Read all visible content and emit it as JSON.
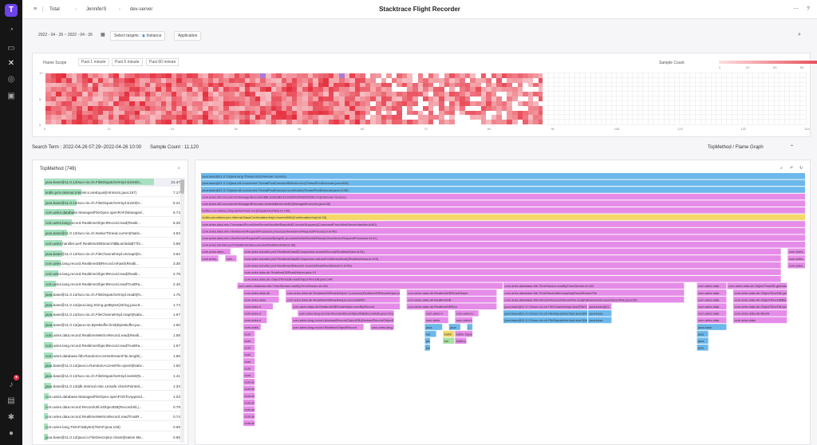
{
  "header": {
    "breadcrumbs": [
      "Total",
      "JenniferS",
      "dev-server"
    ],
    "title": "Stacktrace Flight Recorder",
    "help_icon": "help-icon"
  },
  "filters": {
    "date_range": "2022 - 04 - 26 ~ 2022 - 04 - 26",
    "select_targets_label": "Select targets :",
    "instance_label": "Instance",
    "application_label": "Application"
  },
  "flame_scope": {
    "title": "Flame Scope",
    "buttons": [
      "Past 1 minute",
      "Past 5 minute",
      "Past 60 minute"
    ],
    "legend_title": "Sample Count",
    "legend_ticks": [
      "0",
      "20",
      "60",
      "80",
      "121"
    ],
    "y_ticks": [
      "10",
      "5",
      "0"
    ],
    "x_ticks": [
      "0",
      "12",
      "24",
      "36",
      "48",
      "60",
      "72",
      "84",
      "96",
      "108",
      "120",
      "132",
      "144"
    ]
  },
  "summary": {
    "search_term": "Search Term : 2022-04-26 07:29~2022-04-26 10:00",
    "sample_count": "Sample Count : 11,120",
    "view_mode": "TopMethod / Flame Graph"
  },
  "top_method": {
    "title": "TopMethod (749)",
    "rows": [
      {
        "name": "java.base@11.0.13/sun.nio.ch.FileDispatcherImpl.size0(N...",
        "pct": "21.47%",
        "frac": 0.92
      },
      {
        "name": "kotlin.jvm.internal.Intrinsics.areEqual(Intrinsics.java:167)",
        "pct": "7.17%",
        "frac": 0.31
      },
      {
        "name": "java.base@11.0.13/sun.nio.ch.FileDispatcherImpl.size0(N...",
        "pct": "6.21%",
        "frac": 0.27
      },
      {
        "name": "com.aries.database.ManagedFileOpen.openRAF(Managed...",
        "pct": "5.74%",
        "frac": 0.25
      },
      {
        "name": "com.aries.lang.record.RealtimeObjectRecord.read(Realti...",
        "pct": "5.25%",
        "frac": 0.23
      },
      {
        "name": "java.base@11.0.13/sun.nio.ch.NativeThread.current(Nativ...",
        "pct": "4.52%",
        "frac": 0.19
      },
      {
        "name": "com.aries.handler.perf.RealtimeDBSearch$$Lambda$77b/...",
        "pct": "3.58%",
        "frac": 0.15
      },
      {
        "name": "java.base@11.0.13/sun.nio.ch.FileChannelImpl.unmap0(N...",
        "pct": "3.52%",
        "frac": 0.15
      },
      {
        "name": "com.aries.lang.record.RealtimeDBRecord.rehash(Realti...",
        "pct": "3.35%",
        "frac": 0.14
      },
      {
        "name": "com.aries.lang.record.RealtimeObjectRecord.read(Realti...",
        "pct": "2.79%",
        "frac": 0.12
      },
      {
        "name": "com.aries.lang.record.RealtimeObjectRecord.readTrustRa...",
        "pct": "2.45%",
        "frac": 0.1
      },
      {
        "name": "java.base@11.0.13/sun.nio.ch.FileDispatcherImpl.read0(N...",
        "pct": "1.75%",
        "frac": 0.07
      },
      {
        "name": "java.base@11.0.13/java.lang.String.getBytes(String.java:9...",
        "pct": "1.74%",
        "frac": 0.07
      },
      {
        "name": "java.base@11.0.13/sun.nio.ch.FileChannelImpl.map0(Nativ...",
        "pct": "1.67%",
        "frac": 0.07
      },
      {
        "name": "java.base@11.0.13/java.nio.ByteBuffer.limit(ByteBuffer.jav...",
        "pct": "1.60%",
        "frac": 0.07
      },
      {
        "name": "com.aries.data.record.RealtimeMetricsRecord.read(Realti...",
        "pct": "1.58%",
        "frac": 0.07
      },
      {
        "name": "com.aries.lang.record.RealtimeObjectRecord.readTrustRa...",
        "pct": "1.57%",
        "frac": 0.07
      },
      {
        "name": "com.aries.database.fdb.RandomAccessStreamFile.length(...",
        "pct": "1.56%",
        "frac": 0.07
      },
      {
        "name": "java.base@11.0.13/java.io.RandomAccessFile.open0(Nativ...",
        "pct": "1.50%",
        "frac": 0.06
      },
      {
        "name": "java.base@11.0.13/sun.nio.ch.FileDispatcherImpl.seek0(N...",
        "pct": "1.41%",
        "frac": 0.06
      },
      {
        "name": "java.base@11.0.13/jdk.internal.misc.Unsafe.checkPointer(...",
        "pct": "1.34%",
        "frac": 0.06
      },
      {
        "name": "com.aries.database.ManagedFileOpen.openFOSToAppend...",
        "pct": "1.03%",
        "frac": 0.04
      },
      {
        "name": "com.aries.data.record.RecordUtil.isObjectDB(RecordUtil.j...",
        "pct": "0.79%",
        "frac": 0.03
      },
      {
        "name": "com.aries.data.record.RealtimeMetricsRecord.readTrustR...",
        "pct": "0.74%",
        "frac": 0.03
      },
      {
        "name": "com.aries.lang.TMAP.toBytes(TMAP.java:148)",
        "pct": "0.69%",
        "frac": 0.03
      },
      {
        "name": "java.base@11.0.13/java.io.FileDescriptor.close0(Native Me...",
        "pct": "0.65%",
        "frac": 0.03
      }
    ]
  },
  "flame_graph": {
    "frames": [
      {
        "d": 0,
        "s": 0,
        "w": 1,
        "c": "#6cb8ec",
        "t": "java.base@11.0.13/java.lang.Thread.run(Unknown Source)"
      },
      {
        "d": 1,
        "s": 0,
        "w": 1,
        "c": "#6cb8ec",
        "t": "java.base@11.0.13/java.util.concurrent.ThreadPoolExecutor$Worker.run(ThreadPoolExecutor.java:628)"
      },
      {
        "d": 2,
        "s": 0,
        "w": 1,
        "c": "#6cb8ec",
        "t": "java.base@11.0.13/java.util.concurrent.ThreadPoolExecutor.runWorker(ThreadPoolExecutor.java:1128)"
      },
      {
        "d": 3,
        "s": 0,
        "w": 1,
        "c": "#e58ce8",
        "t": "com.aries.util.concurrent.ManagedExecutor$$Lambda$131/0x000000080025f6.run(Unknown Source)"
      },
      {
        "d": 4,
        "s": 0,
        "w": 1,
        "c": "#e58ce8",
        "t": "com.aries.util.concurrent.ManagedExecutor.lambda$execute$1(ManagedExecutor.java:85)"
      },
      {
        "d": 5,
        "s": 0,
        "w": 1,
        "c": "#e58ce8",
        "t": "kotlinx.coroutines.DispatchedTask.run(DispatchedTask.kt:106)"
      },
      {
        "d": 6,
        "s": 0,
        "w": 1,
        "c": "#f6d86a",
        "t": "kotlin.coroutines.jvm.internal.BaseContinuationImpl.resumeWith(ContinuationImpl.kt:33)"
      },
      {
        "d": 7,
        "s": 0,
        "w": 1,
        "c": "#e58ce8",
        "t": "com.aries.data.mix.CommandFromViewServerHandler$handle$1.invokeSuspend(CommandFromViewServerHandler.kt:80)"
      },
      {
        "d": 8,
        "s": 0,
        "w": 1,
        "c": "#e58ce8",
        "t": "com.aries.data.mix.ViewServerRequestProcessor.process(ViewServerRequestProcessor.kt:46)"
      },
      {
        "d": 9,
        "s": 0,
        "w": 1,
        "c": "#e58ce8",
        "t": "com.aries.data.mix.ViewServerRequestProcessor$wrap$1.processNoNetRubbleResult(ViewServerRequestProcessor.kt:41)"
      },
      {
        "d": 10,
        "s": 0,
        "w": 1,
        "c": "#e58ce8",
        "t": "com.aries.handler.perf.RealtimeData.execute(RealtimeData.kt:38)"
      },
      {
        "d": 11,
        "s": 0,
        "w": 0.05,
        "c": "#e58ce8",
        "t": "com.aries.data..."
      },
      {
        "d": 11,
        "s": 0.07,
        "w": 0.89,
        "c": "#e58ce8",
        "t": "com.aries.handler.perf.RealtimeData$Companion.searchRecord(RealtimeData.kt:34)"
      },
      {
        "d": 11,
        "s": 0.97,
        "w": 0.03,
        "c": "#e58ce8",
        "t": "com.aries..."
      },
      {
        "d": 12,
        "s": 0,
        "w": 0.03,
        "c": "#e58ce8",
        "t": "com.aries..."
      },
      {
        "d": 12,
        "s": 0.04,
        "w": 0.02,
        "c": "#e58ce8",
        "t": "com..."
      },
      {
        "d": 12,
        "s": 0.07,
        "w": 0.89,
        "c": "#e58ce8",
        "t": "com.aries.handler.perf.RealtimeData$Companion.valuesForMetricsStore(RealtimeData.kt:109)"
      },
      {
        "d": 12,
        "s": 0.97,
        "w": 0.03,
        "c": "#e58ce8",
        "t": "com.aries..."
      },
      {
        "d": 13,
        "s": 0.07,
        "w": 0.89,
        "c": "#e58ce8",
        "t": "com.aries.handler.perf.RealtimeDBSearch.search(RealtimeDBSearch.kt:95)"
      },
      {
        "d": 13,
        "s": 0.97,
        "w": 0.03,
        "c": "#e58ce8",
        "t": "com.aries..."
      },
      {
        "d": 14,
        "s": 0.07,
        "w": 0.89,
        "c": "#e58ce8",
        "t": "com.aries.data.db.RealtimeDBReadHelper.java:19"
      },
      {
        "d": 15,
        "s": 0.07,
        "w": 0.89,
        "c": "#e58ce8",
        "t": "com.aries.data.db.ObjectTimeDB.readObjectTimeDB.java:148"
      },
      {
        "d": 16,
        "s": 0.06,
        "w": 0.44,
        "c": "#e58ce8",
        "t": "com.aries.database.fdb.TimeStream.readByTimeStream.kt:156"
      },
      {
        "d": 16,
        "s": 0.5,
        "w": 0.3,
        "c": "#e58ce8",
        "t": "com.aries.database.fdb.TimeStream.readByTimeStream.kt:152"
      },
      {
        "d": 16,
        "s": 0.82,
        "w": 0.05,
        "c": "#e58ce8",
        "t": "com.aries.data"
      },
      {
        "d": 16,
        "s": 0.87,
        "w": 0.1,
        "c": "#e58ce8",
        "t": "com.aries.data.db.ObjectTimeDB.getDatabase"
      },
      {
        "d": 17,
        "s": 0.07,
        "w": 0.06,
        "c": "#e58ce8",
        "t": "com.aries.data.db"
      },
      {
        "d": 17,
        "s": 0.14,
        "w": 0.19,
        "c": "#e58ce8",
        "t": "com.aries.data.db.RealtimeDBReadHelper.1.process(RealtimeDBReadHelper.java:122)"
      },
      {
        "d": 17,
        "s": 0.34,
        "w": 0.15,
        "c": "#e58ce8",
        "t": "com.aries.data.db.RealtimeDBReadHelper"
      },
      {
        "d": 17,
        "s": 0.5,
        "w": 0.3,
        "c": "#e58ce8",
        "t": "com.aries.database.fdb.TimeStreamMemoryMapReadStreamFile"
      },
      {
        "d": 17,
        "s": 0.82,
        "w": 0.05,
        "c": "#e58ce8",
        "t": "com.aries.data"
      },
      {
        "d": 17,
        "s": 0.88,
        "w": 0.09,
        "c": "#e58ce8",
        "t": "com.aries.data.db.ObjectTimeDB.getDatabase"
      },
      {
        "d": 18,
        "s": 0.07,
        "w": 0.06,
        "c": "#e58ce8",
        "t": "com.aries.data"
      },
      {
        "d": 18,
        "s": 0.14,
        "w": 0.19,
        "c": "#e58ce8",
        "t": "com.aries.data.db.RealtimeDBReadHelper.access$000"
      },
      {
        "d": 18,
        "s": 0.34,
        "w": 0.15,
        "c": "#e58ce8",
        "t": "com.aries.data.db.RealtimeDB"
      },
      {
        "d": 18,
        "s": 0.5,
        "w": 0.3,
        "c": "#e58ce8",
        "t": "com.aries.database.fdb.RandomAccessStreamFile.length(RandomAccessStreamFile.java:29)"
      },
      {
        "d": 18,
        "s": 0.82,
        "w": 0.05,
        "c": "#e58ce8",
        "t": "com.aries.data"
      },
      {
        "d": 18,
        "s": 0.88,
        "w": 0.09,
        "c": "#e58ce8",
        "t": "com.aries.data.db.ObjectTimeDB$$Lambda"
      },
      {
        "d": 19,
        "s": 0.07,
        "w": 0.05,
        "c": "#e58ce8",
        "t": "com.aries.d"
      },
      {
        "d": 19,
        "s": 0.15,
        "w": 0.18,
        "c": "#e58ce8",
        "t": "com.aries.data.db.RealtimeDBReadHelper.readByRecord"
      },
      {
        "d": 19,
        "s": 0.34,
        "w": 0.15,
        "c": "#e58ce8",
        "t": "com.aries.data.db.RealtimeDBRea"
      },
      {
        "d": 19,
        "s": 0.5,
        "w": 0.14,
        "c": "#e58ce8",
        "t": "java.base@11.0.13/sun.nio.ch.FileChannelImpl.size(FileChannelImpl.java:388)"
      },
      {
        "d": 19,
        "s": 0.64,
        "w": 0.04,
        "c": "#e58ce8",
        "t": "java.base@11"
      },
      {
        "d": 19,
        "s": 0.82,
        "w": 0.05,
        "c": "#e58ce8",
        "t": "com.aries.data"
      },
      {
        "d": 19,
        "s": 0.88,
        "w": 0.09,
        "c": "#e58ce8",
        "t": "com.aries.data.db.ObjectTimeDB.lambda"
      },
      {
        "d": 20,
        "s": 0.07,
        "w": 0.04,
        "c": "#e58ce8",
        "t": "com.aries.d"
      },
      {
        "d": 20,
        "s": 0.16,
        "w": 0.16,
        "c": "#e58ce8",
        "t": "com.aries.lang.record.RecordUtils.isObjectDB(RecordUtil.java:101)"
      },
      {
        "d": 20,
        "s": 0.37,
        "w": 0.04,
        "c": "#e58ce8",
        "t": "com.aries.d"
      },
      {
        "d": 20,
        "s": 0.42,
        "w": 0.04,
        "c": "#e58ce8",
        "t": "com.aries.lo"
      },
      {
        "d": 20,
        "s": 0.5,
        "w": 0.14,
        "c": "#6cb8ec",
        "t": "java.base@11.0.13/sun.nio.ch.FileDispatcherImpl.size0(FileDispatcherImpl.java)"
      },
      {
        "d": 20,
        "s": 0.64,
        "w": 0.04,
        "c": "#6cb8ec",
        "t": "java.base"
      },
      {
        "d": 20,
        "s": 0.82,
        "w": 0.05,
        "c": "#e58ce8",
        "t": "com.aries.data"
      },
      {
        "d": 20,
        "s": 0.88,
        "w": 0.09,
        "c": "#e58ce8",
        "t": "com.aries.data.db.fileUtil"
      },
      {
        "d": 21,
        "s": 0.07,
        "w": 0.04,
        "c": "#e58ce8",
        "t": "com.aries.d"
      },
      {
        "d": 21,
        "s": 0.15,
        "w": 0.17,
        "c": "#e58ce8",
        "t": "com.aries.lang.record.AbstractRecordObjectDB(AbstractRecordObjectDB.java:31)"
      },
      {
        "d": 21,
        "s": 0.37,
        "w": 0.04,
        "c": "#e58ce8",
        "t": "com.aries"
      },
      {
        "d": 21,
        "s": 0.42,
        "w": 0.03,
        "c": "#e58ce8",
        "t": "com.aries.la"
      },
      {
        "d": 21,
        "s": 0.5,
        "w": 0.14,
        "c": "#6cb8ec",
        "t": "java.base@11.0.13/sun.nio.ch.FileDispatcherImpl.size0(Native Method)"
      },
      {
        "d": 21,
        "s": 0.64,
        "w": 0.04,
        "c": "#6cb8ec",
        "t": "java.base"
      },
      {
        "d": 21,
        "s": 0.82,
        "w": 0.05,
        "c": "#e58ce8",
        "t": "com.aries.data"
      },
      {
        "d": 21,
        "s": 0.88,
        "w": 0.09,
        "c": "#e58ce8",
        "t": "com.aries.data"
      },
      {
        "d": 22,
        "s": 0.07,
        "w": 0.03,
        "c": "#e58ce8",
        "t": "com.aries"
      },
      {
        "d": 22,
        "s": 0.15,
        "w": 0.12,
        "c": "#e58ce8",
        "t": "com.aries.lang.record.RealtimeObjectRecord"
      },
      {
        "d": 22,
        "s": 0.28,
        "w": 0.04,
        "c": "#e58ce8",
        "t": "com.aries.lang.record.RealtimeDB"
      },
      {
        "d": 22,
        "s": 0.37,
        "w": 0.03,
        "c": "#6cb8ec",
        "t": "java"
      },
      {
        "d": 22,
        "s": 0.41,
        "w": 0.02,
        "c": "#6cb8ec",
        "t": "java"
      },
      {
        "d": 22,
        "s": 0.44,
        "w": 0.01,
        "c": "#6cb8ec",
        "t": "j"
      },
      {
        "d": 22,
        "s": 0.82,
        "w": 0.05,
        "c": "#6cb8ec",
        "t": "java.base"
      },
      {
        "d": 23,
        "s": 0.07,
        "w": 0.02,
        "c": "#e58ce8",
        "t": "com"
      },
      {
        "d": 23,
        "s": 0.37,
        "w": 0.02,
        "c": "#6cb8ec",
        "t": "kot"
      },
      {
        "d": 23,
        "s": 0.4,
        "w": 0.02,
        "c": "#f6d86a",
        "t": "kotlin"
      },
      {
        "d": 23,
        "s": 0.42,
        "w": 0.03,
        "c": "#e58ce8",
        "t": "kotlin.TypeI"
      },
      {
        "d": 23,
        "s": 0.82,
        "w": 0.02,
        "c": "#6cb8ec",
        "t": "java"
      },
      {
        "d": 24,
        "s": 0.07,
        "w": 0.02,
        "c": "#e58ce8",
        "t": "com"
      },
      {
        "d": 24,
        "s": 0.37,
        "w": 0.01,
        "c": "#6cb8ec",
        "t": "jav"
      },
      {
        "d": 24,
        "s": 0.4,
        "w": 0.02,
        "c": "#a7e2a0",
        "t": "kot"
      },
      {
        "d": 24,
        "s": 0.42,
        "w": 0.02,
        "c": "#e58ce8",
        "t": "kotlin.jvm"
      },
      {
        "d": 24,
        "s": 0.82,
        "w": 0.02,
        "c": "#6cb8ec",
        "t": "java"
      },
      {
        "d": 25,
        "s": 0.07,
        "w": 0.02,
        "c": "#e58ce8",
        "t": "com"
      },
      {
        "d": 25,
        "s": 0.37,
        "w": 0.01,
        "c": "#6cb8ec",
        "t": "jav"
      },
      {
        "d": 25,
        "s": 0.82,
        "w": 0.02,
        "c": "#6cb8ec",
        "t": "java"
      },
      {
        "d": 26,
        "s": 0.07,
        "w": 0.02,
        "c": "#e58ce8",
        "t": "com"
      },
      {
        "d": 27,
        "s": 0.07,
        "w": 0.02,
        "c": "#e58ce8",
        "t": "com"
      },
      {
        "d": 28,
        "s": 0.07,
        "w": 0.02,
        "c": "#e58ce8",
        "t": "com"
      },
      {
        "d": 29,
        "s": 0.07,
        "w": 0.02,
        "c": "#e58ce8",
        "t": "com"
      },
      {
        "d": 30,
        "s": 0.07,
        "w": 0.02,
        "c": "#e58ce8",
        "t": "com.ari"
      },
      {
        "d": 31,
        "s": 0.07,
        "w": 0.02,
        "c": "#e58ce8",
        "t": "com.ari"
      },
      {
        "d": 32,
        "s": 0.07,
        "w": 0.02,
        "c": "#e58ce8",
        "t": "com.ari"
      },
      {
        "d": 33,
        "s": 0.07,
        "w": 0.02,
        "c": "#e58ce8",
        "t": "com.ari"
      },
      {
        "d": 34,
        "s": 0.07,
        "w": 0.02,
        "c": "#e58ce8",
        "t": "com.ari"
      },
      {
        "d": 35,
        "s": 0.07,
        "w": 0.02,
        "c": "#e58ce8",
        "t": "com.ari"
      },
      {
        "d": 36,
        "s": 0.07,
        "w": 0.02,
        "c": "#e58ce8",
        "t": "com.ari"
      }
    ]
  }
}
